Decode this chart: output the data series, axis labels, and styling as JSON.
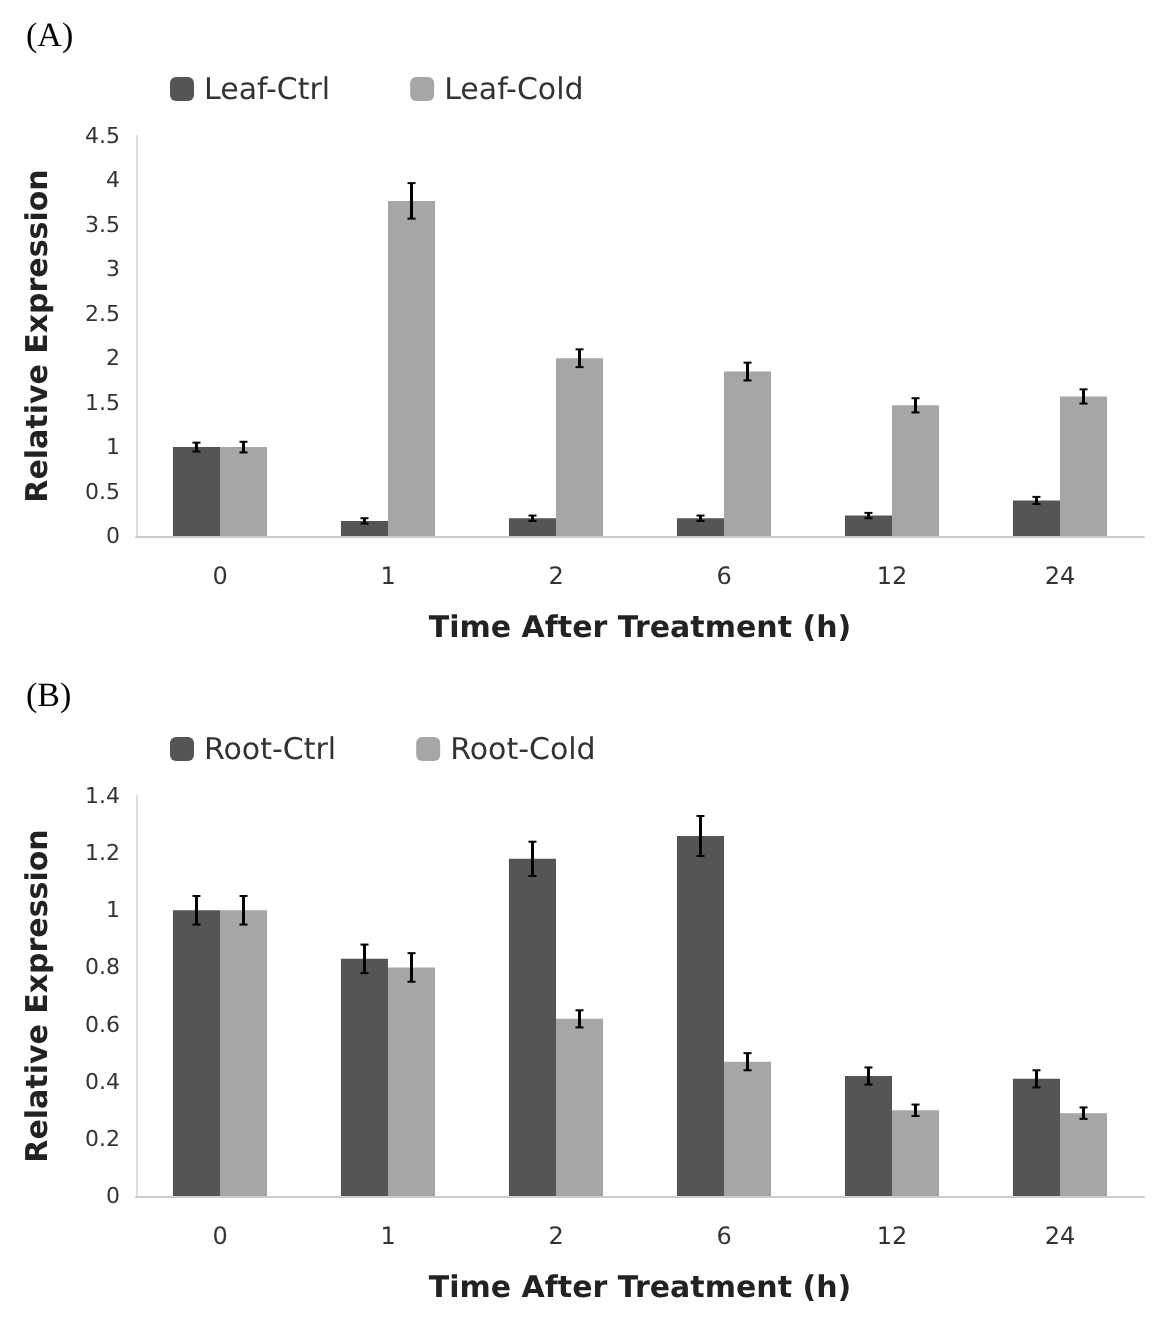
{
  "chart_data": [
    {
      "type": "bar",
      "title": "(A)",
      "xlabel": "Time After Treatment (h)",
      "ylabel": "Relative Expression",
      "categories": [
        "0",
        "1",
        "2",
        "6",
        "12",
        "24"
      ],
      "ylim": [
        0,
        4.5
      ],
      "yticks": [
        0,
        0.5,
        1,
        1.5,
        2,
        2.5,
        3,
        3.5,
        4,
        4.5
      ],
      "grid": false,
      "legend": "top",
      "series": [
        {
          "name": "Leaf-Ctrl",
          "color": "#555555",
          "values": [
            1,
            0.17,
            0.2,
            0.2,
            0.23,
            0.4
          ],
          "errors": [
            0.05,
            0.03,
            0.03,
            0.03,
            0.03,
            0.04
          ]
        },
        {
          "name": "Leaf-Cold",
          "color": "#a6a6a6",
          "values": [
            1,
            3.77,
            2,
            1.85,
            1.47,
            1.57
          ],
          "errors": [
            0.06,
            0.2,
            0.1,
            0.1,
            0.08,
            0.08
          ]
        }
      ]
    },
    {
      "type": "bar",
      "title": "(B)",
      "xlabel": "Time After Treatment (h)",
      "ylabel": "Relative Expression",
      "categories": [
        "0",
        "1",
        "2",
        "6",
        "12",
        "24"
      ],
      "ylim": [
        0,
        1.4
      ],
      "yticks": [
        0,
        0.2,
        0.4,
        0.6,
        0.8,
        1,
        1.2,
        1.4
      ],
      "grid": false,
      "legend": "top",
      "series": [
        {
          "name": "Root-Ctrl",
          "color": "#555555",
          "values": [
            1,
            0.83,
            1.18,
            1.26,
            0.42,
            0.41
          ],
          "errors": [
            0.05,
            0.05,
            0.06,
            0.07,
            0.03,
            0.03
          ]
        },
        {
          "name": "Root-Cold",
          "color": "#a6a6a6",
          "values": [
            1,
            0.8,
            0.62,
            0.47,
            0.3,
            0.29
          ],
          "errors": [
            0.05,
            0.05,
            0.03,
            0.03,
            0.02,
            0.02
          ]
        }
      ]
    }
  ]
}
